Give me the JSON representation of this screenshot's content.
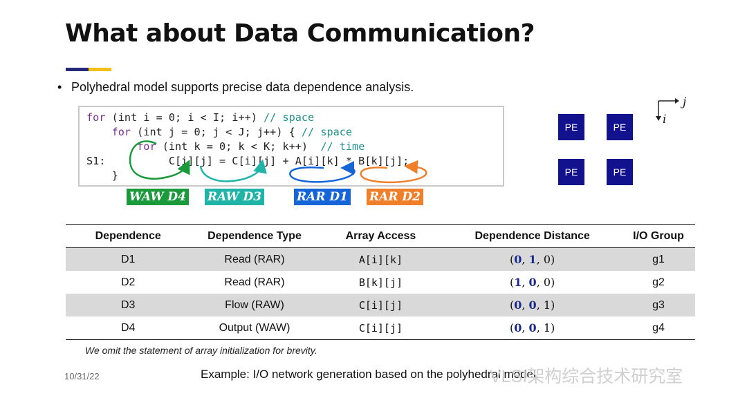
{
  "slide": {
    "title": "What about Data Communication?",
    "bullet": "Polyhedral model supports precise data dependence analysis.",
    "code": {
      "line1_kw": "for",
      "line1": " (int i = 0; i < I; i++) ",
      "line1_cm": "// space",
      "line2_kw": "for",
      "line2": " (int j = 0; j < J; j++) { ",
      "line2_cm": "// space",
      "line3_kw": "for",
      "line3": " (int k = 0; k < K; k++)  ",
      "line3_cm": "// time",
      "line4": "S1:          C[i][j] = C[i][j] + A[i][k] * B[k][j];",
      "line5": "    }"
    },
    "dep_labels": [
      {
        "text": "WAW D4",
        "color": "#1a9a3a"
      },
      {
        "text": "RAW D3",
        "color": "#20b3a8"
      },
      {
        "text": "RAR D1",
        "color": "#1565d8"
      },
      {
        "text": "RAR D2",
        "color": "#f07f2a"
      }
    ],
    "pe_grid": [
      "PE",
      "PE",
      "PE",
      "PE"
    ],
    "axes": {
      "j": "j",
      "i": "i"
    },
    "table": {
      "headers": [
        "Dependence",
        "Dependence Type",
        "Array Access",
        "Dependence Distance",
        "I/O Group"
      ],
      "rows": [
        {
          "dep": "D1",
          "type": "Read (RAR)",
          "access": "A[i][k]",
          "dist": [
            "0",
            "1",
            "0"
          ],
          "group": "g1"
        },
        {
          "dep": "D2",
          "type": "Read (RAR)",
          "access": "B[k][j]",
          "dist": [
            "1",
            "0",
            "0"
          ],
          "group": "g2"
        },
        {
          "dep": "D3",
          "type": "Flow (RAW)",
          "access": "C[i][j]",
          "dist": [
            "0",
            "0",
            "1"
          ],
          "group": "g3"
        },
        {
          "dep": "D4",
          "type": "Output (WAW)",
          "access": "C[i][j]",
          "dist": [
            "0",
            "0",
            "1"
          ],
          "group": "g4"
        }
      ]
    },
    "note": "We omit the statement of array initialization for brevity.",
    "date": "10/31/22",
    "caption": "Example: I/O network generation based on the polyhedral model.",
    "watermark": "VLSI架构综合技术研究室",
    "bullet_glyph": "•"
  }
}
